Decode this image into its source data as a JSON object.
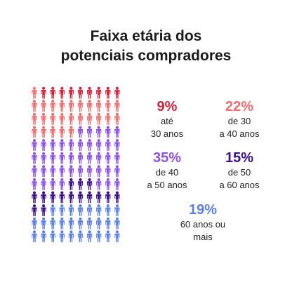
{
  "title": {
    "line1": "Faixa etária dos",
    "line2": "potenciais compradores"
  },
  "chart_data": {
    "type": "pictograph",
    "total_icons": 120,
    "columns": 10,
    "segments": [
      {
        "value": 9,
        "percent_label": "9%",
        "label_line1": "até",
        "label_line2": "30 anos",
        "color": "#d0223a"
      },
      {
        "value": 22,
        "percent_label": "22%",
        "label_line1": "de 30",
        "label_line2": "a 40 anos",
        "color": "#ee6f6f"
      },
      {
        "value": 35,
        "percent_label": "35%",
        "label_line1": "de 40",
        "label_line2": "a 50 anos",
        "color": "#8c52e8"
      },
      {
        "value": 15,
        "percent_label": "15%",
        "label_line1": "de 50",
        "label_line2": "a 60 anos",
        "color": "#3b0f8c"
      },
      {
        "value": 19,
        "percent_label": "19%",
        "label_line1": "60 anos ou",
        "label_line2": "mais",
        "color": "#5c7fe6"
      }
    ],
    "icon_sequence": [
      "#ee6f6f",
      "#d0223a",
      "#d0223a",
      "#d0223a",
      "#d0223a",
      "#d0223a",
      "#d0223a",
      "#d0223a",
      "#d0223a",
      "#d0223a",
      "#ee6f6f",
      "#ee6f6f",
      "#ee6f6f",
      "#ee6f6f",
      "#ee6f6f",
      "#ee6f6f",
      "#ee6f6f",
      "#ee6f6f",
      "#ee6f6f",
      "#ee6f6f",
      "#ee6f6f",
      "#ee6f6f",
      "#ee6f6f",
      "#ee6f6f",
      "#ee6f6f",
      "#ee6f6f",
      "#ee6f6f",
      "#ee6f6f",
      "#ee6f6f",
      "#ee6f6f",
      "#ee6f6f",
      "#ee6f6f",
      "#ee6f6f",
      "#ee6f6f",
      "#ee6f6f",
      "#8c52e8",
      "#8c52e8",
      "#8c52e8",
      "#8c52e8",
      "#8c52e8",
      "#8c52e8",
      "#8c52e8",
      "#8c52e8",
      "#8c52e8",
      "#8c52e8",
      "#8c52e8",
      "#8c52e8",
      "#8c52e8",
      "#8c52e8",
      "#8c52e8",
      "#8c52e8",
      "#8c52e8",
      "#8c52e8",
      "#8c52e8",
      "#8c52e8",
      "#8c52e8",
      "#8c52e8",
      "#8c52e8",
      "#8c52e8",
      "#8c52e8",
      "#8c52e8",
      "#8c52e8",
      "#8c52e8",
      "#8c52e8",
      "#8c52e8",
      "#8c52e8",
      "#8c52e8",
      "#8c52e8",
      "#8c52e8",
      "#8c52e8",
      "#8c52e8",
      "#8c52e8",
      "#8c52e8",
      "#8c52e8",
      "#3b0f8c",
      "#3b0f8c",
      "#3b0f8c",
      "#8c52e8",
      "#8c52e8",
      "#8c52e8",
      "#3b0f8c",
      "#3b0f8c",
      "#3b0f8c",
      "#3b0f8c",
      "#3b0f8c",
      "#3b0f8c",
      "#3b0f8c",
      "#3b0f8c",
      "#3b0f8c",
      "#3b0f8c",
      "#3b0f8c",
      "#3b0f8c",
      "#5c7fe6",
      "#5c7fe6",
      "#5c7fe6",
      "#5c7fe6",
      "#5c7fe6",
      "#5c7fe6",
      "#5c7fe6",
      "#5c7fe6",
      "#5c7fe6",
      "#5c7fe6",
      "#5c7fe6",
      "#5c7fe6",
      "#5c7fe6",
      "#5c7fe6",
      "#5c7fe6",
      "#5c7fe6",
      "#5c7fe6",
      "#5c7fe6",
      "#5c7fe6",
      "#5c7fe6",
      "#5c7fe6",
      "#5c7fe6",
      "#5c7fe6",
      "#5c7fe6",
      "#5c7fe6",
      "#5c7fe6",
      "#5c7fe6",
      "#5c7fe6"
    ]
  }
}
